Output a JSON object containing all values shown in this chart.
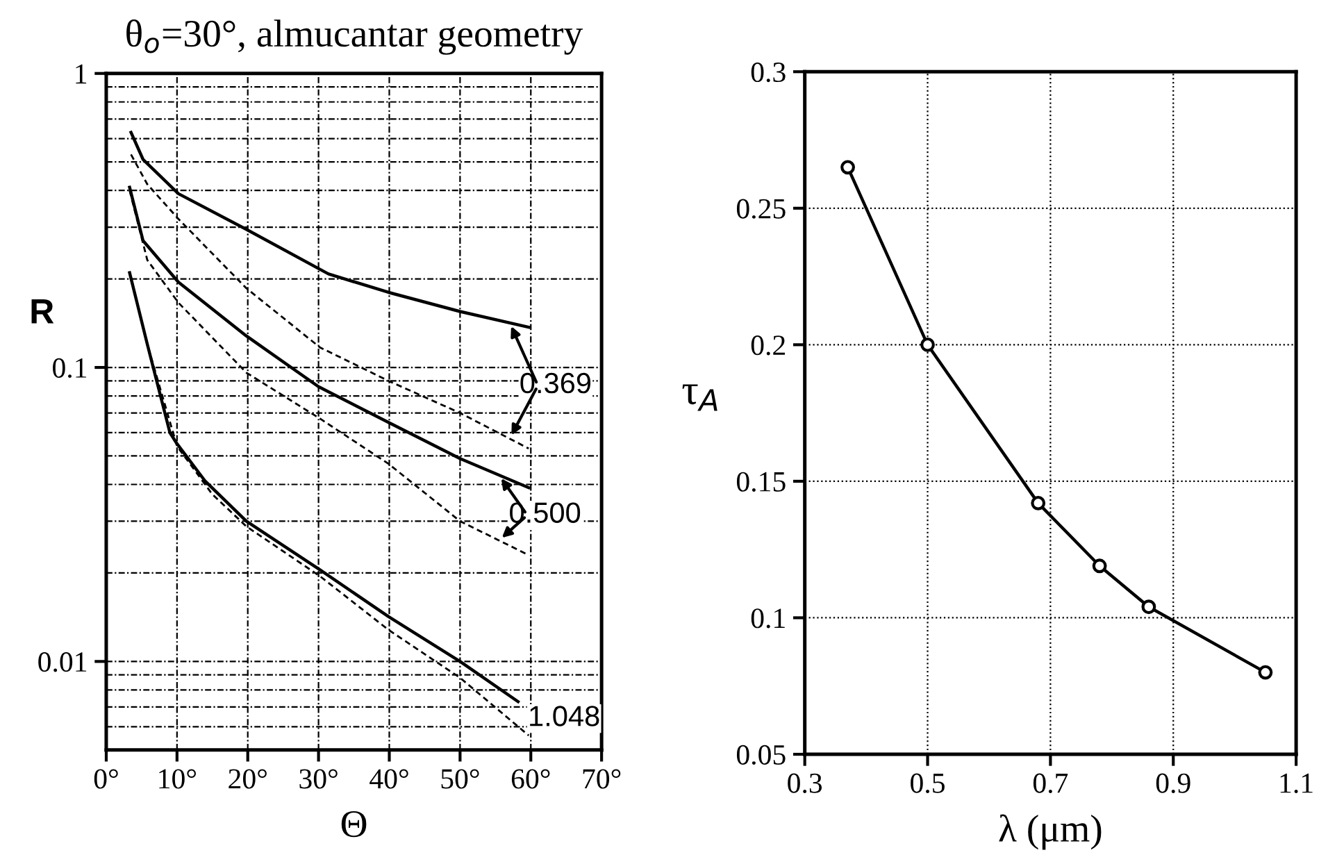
{
  "chart_data": [
    {
      "type": "line",
      "title": "θ$_{o}$=30°, almucantar geometry",
      "xlabel": "Θ",
      "ylabel": "R",
      "log": "y",
      "grid": true,
      "marker": "none",
      "xlim": [
        0,
        70
      ],
      "ylim": [
        0.005,
        1
      ],
      "xticks": [
        {
          "value": 0,
          "label": "0°"
        },
        {
          "value": 10,
          "label": "10°"
        },
        {
          "value": 20,
          "label": "20°"
        },
        {
          "value": 30,
          "label": "30°"
        },
        {
          "value": 40,
          "label": "40°"
        },
        {
          "value": 50,
          "label": "50°"
        },
        {
          "value": 60,
          "label": "60°"
        },
        {
          "value": 70,
          "label": "70°"
        }
      ],
      "yticks": [
        1,
        0.1,
        0.01,
        {
          "value": 0.9,
          "label": null
        },
        {
          "value": 0.8,
          "label": null
        },
        {
          "value": 0.7,
          "label": null
        },
        {
          "value": 0.6,
          "label": null
        },
        {
          "value": 0.5,
          "label": null
        },
        {
          "value": 0.4,
          "label": null
        },
        {
          "value": 0.3,
          "label": null
        },
        {
          "value": 0.2,
          "label": null
        },
        {
          "value": 0.09,
          "label": null
        },
        {
          "value": 0.08,
          "label": null
        },
        {
          "value": 0.07,
          "label": null
        },
        {
          "value": 0.06,
          "label": null
        },
        {
          "value": 0.05,
          "label": null
        },
        {
          "value": 0.04,
          "label": null
        },
        {
          "value": 0.03,
          "label": null
        },
        {
          "value": 0.02,
          "label": null
        },
        {
          "value": 0.009,
          "label": null
        },
        {
          "value": 0.008,
          "label": null
        },
        {
          "value": 0.007,
          "label": null
        },
        {
          "value": 0.006,
          "label": null
        }
      ],
      "series": [
        {
          "color": "#000000",
          "line_style": "solid",
          "x": [
            3.5,
            5.2,
            10.2,
            19.8,
            31.4,
            39.9,
            50,
            59.7
          ],
          "values": [
            0.63,
            0.51,
            0.39,
            0.295,
            0.208,
            0.18,
            0.155,
            0.137
          ]
        },
        {
          "color": "#000000",
          "line_style": "dashed",
          "x": [
            3.5,
            5.8,
            10.2,
            19.8,
            30.2,
            39.9,
            50,
            59.7
          ],
          "values": [
            0.53,
            0.42,
            0.32,
            0.186,
            0.117,
            0.09,
            0.07,
            0.053
          ]
        },
        {
          "color": "#000000",
          "line_style": "solid",
          "x": [
            3.3,
            5.2,
            10.2,
            19.8,
            30,
            39.9,
            50,
            59.7
          ],
          "values": [
            0.41,
            0.27,
            0.195,
            0.128,
            0.086,
            0.065,
            0.049,
            0.039
          ]
        },
        {
          "color": "#000000",
          "line_style": "dashed",
          "x": [
            3.3,
            5.8,
            10.2,
            19.8,
            30.2,
            39.9,
            50,
            59.7
          ],
          "values": [
            0.4,
            0.232,
            0.166,
            0.096,
            0.067,
            0.047,
            0.03,
            0.023
          ]
        },
        {
          "color": "#000000",
          "line_style": "solid",
          "x": [
            3.3,
            5.8,
            9,
            10,
            14,
            19.8,
            30.2,
            39.9,
            50,
            58.2
          ],
          "values": [
            0.21,
            0.12,
            0.06,
            0.055,
            0.041,
            0.03,
            0.0205,
            0.0142,
            0.01,
            0.0073
          ]
        },
        {
          "color": "#000000",
          "line_style": "dashed",
          "x": [
            3.3,
            5.8,
            10,
            15,
            19.8,
            30.2,
            39.9,
            50,
            59.7
          ],
          "values": [
            0.21,
            0.12,
            0.054,
            0.037,
            0.0288,
            0.0195,
            0.0128,
            0.0088,
            0.0056
          ]
        }
      ],
      "annotations": [
        {
          "text": "0.369",
          "x": 57,
          "y": 0.142
        },
        {
          "text": "0.500",
          "x": 55.5,
          "y": 0.043
        },
        {
          "text": "1.048",
          "x": 58.2,
          "y": 0.0073
        }
      ]
    },
    {
      "type": "line",
      "xlabel": "λ (μm)",
      "ylabel": "τ$_{A}$",
      "grid": true,
      "marker": "circle",
      "line_style": "solid",
      "xlim": [
        0.3,
        1.1
      ],
      "ylim": [
        0.05,
        0.3
      ],
      "xticks": [
        0.3,
        0.5,
        0.7,
        0.9,
        1.1
      ],
      "yticks": [
        0.05,
        0.1,
        0.15,
        0.2,
        0.25,
        0.3
      ],
      "series": [
        {
          "color": "#000000",
          "x": [
            0.37,
            0.5,
            0.68,
            0.78,
            0.86,
            1.05
          ],
          "values": [
            0.265,
            0.2,
            0.142,
            0.119,
            0.104,
            0.08
          ]
        }
      ]
    }
  ]
}
